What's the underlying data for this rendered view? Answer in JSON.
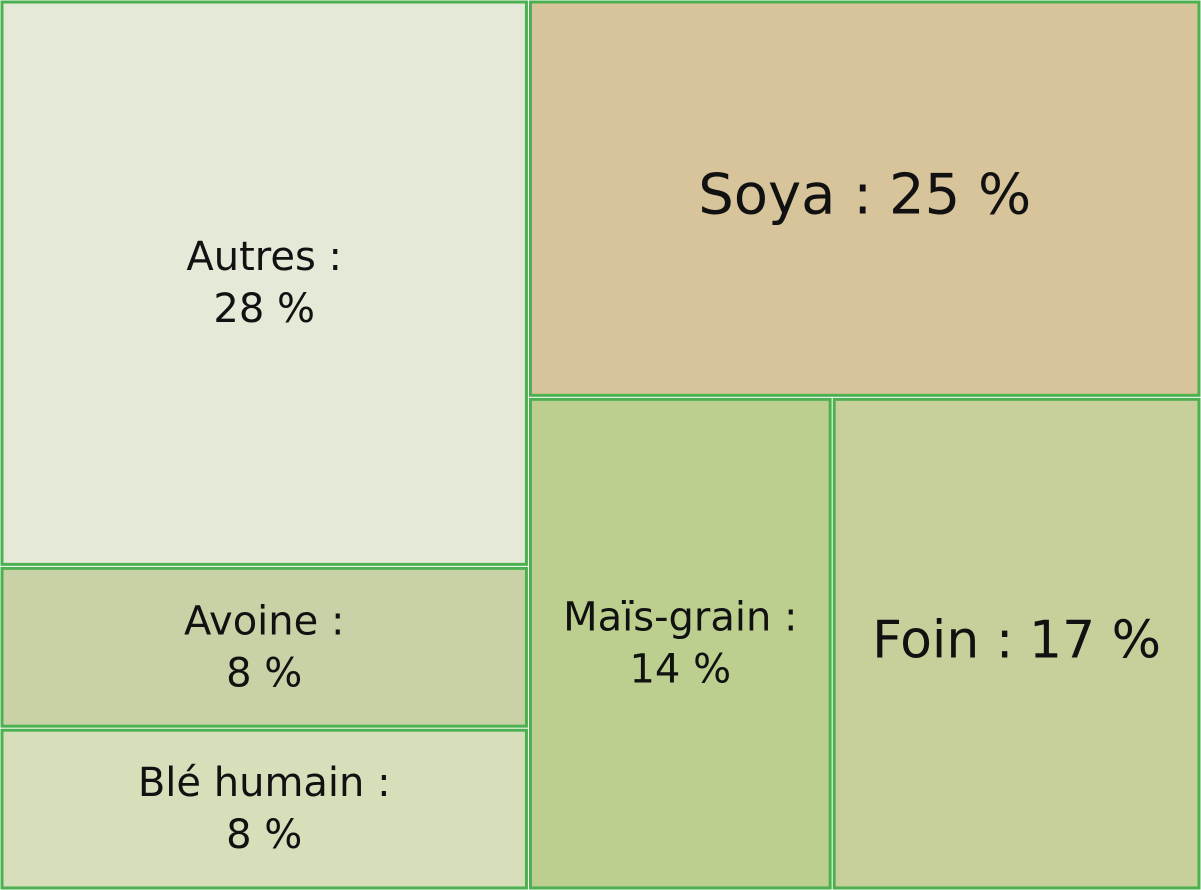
{
  "chart_data": {
    "type": "treemap",
    "categories": [
      "Autres :",
      "Avoine :",
      "Blé humain :",
      "Soya :",
      "Maïs-grain :",
      "Foin :"
    ],
    "values": [
      28,
      8,
      8,
      25,
      14,
      17
    ],
    "value_labels": [
      "28 %",
      "8 %",
      "8 %",
      "25 %",
      "14 %",
      "17 %"
    ],
    "colors": [
      "#e4ead7",
      "#c9d2a6",
      "#d6dfba",
      "#d8c49a",
      "#bccf8e",
      "#c7cf9b"
    ],
    "border_color": "#4caf50"
  }
}
